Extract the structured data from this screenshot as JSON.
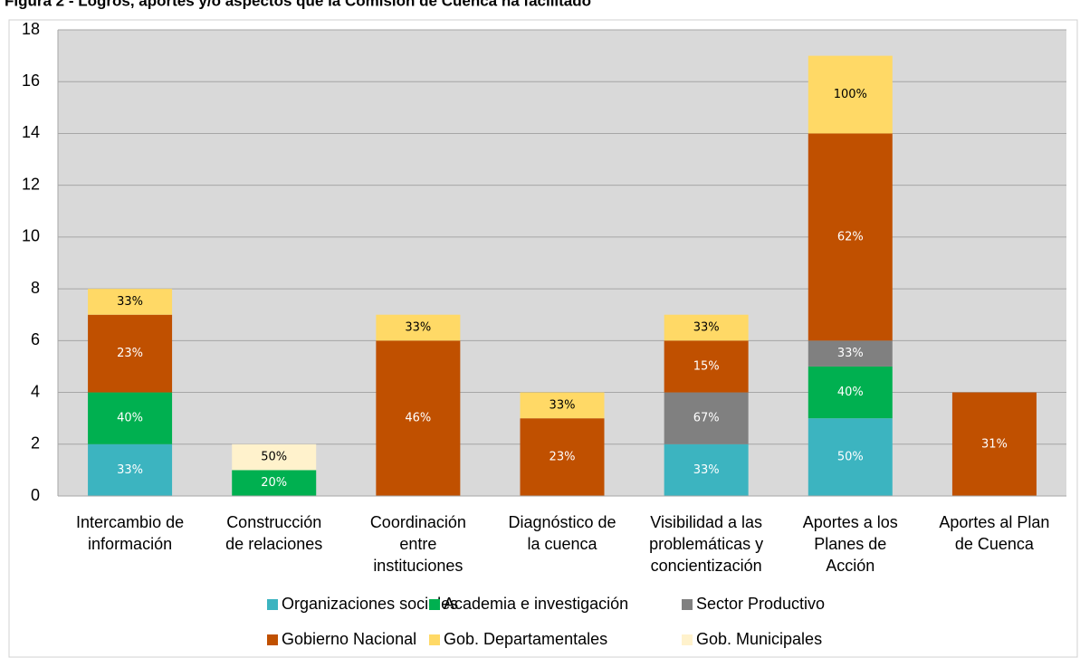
{
  "chart_data": {
    "type": "stacked_bar",
    "title": "Figura 2 - Logros, aportes y/o aspectos que la Comisión de Cuenca ha facilitado",
    "categories": [
      [
        "Intercambio de",
        "información"
      ],
      [
        "Construcción",
        "de relaciones"
      ],
      [
        "Coordinación",
        "entre",
        "instituciones"
      ],
      [
        "Diagnóstico de",
        "la cuenca"
      ],
      [
        "Visibilidad a las",
        "problemáticas y",
        "concientización"
      ],
      [
        "Aportes a los",
        "Planes de",
        "Acción"
      ],
      [
        "Aportes al Plan",
        "de Cuenca"
      ]
    ],
    "series": [
      {
        "name": "Organizaciones sociales",
        "color": "#3cb4c0",
        "values": [
          2,
          null,
          null,
          null,
          2,
          3,
          null
        ],
        "value_labels": [
          "33%",
          null,
          null,
          null,
          "33%",
          "50%",
          null
        ]
      },
      {
        "name": "Academia e investigación",
        "color": "#00b050",
        "values": [
          2,
          1,
          null,
          null,
          null,
          2,
          null
        ],
        "value_labels": [
          "40%",
          "20%",
          null,
          null,
          null,
          "40%",
          null
        ]
      },
      {
        "name": "Sector Productivo",
        "color": "#808080",
        "values": [
          null,
          null,
          null,
          null,
          2,
          1,
          null
        ],
        "value_labels": [
          null,
          null,
          null,
          null,
          "67%",
          "33%",
          null
        ]
      },
      {
        "name": "Gobierno Nacional",
        "color": "#c05000",
        "values": [
          3,
          null,
          6,
          3,
          2,
          8,
          4
        ],
        "value_labels": [
          "23%",
          null,
          "46%",
          "23%",
          "15%",
          "62%",
          "31%"
        ]
      },
      {
        "name": "Gob. Departamentales",
        "color": "#ffd966",
        "values": [
          1,
          null,
          1,
          1,
          1,
          3,
          null
        ],
        "value_labels": [
          "33%",
          null,
          "33%",
          "33%",
          "33%",
          "100%",
          null
        ]
      },
      {
        "name": "Gob. Municipales",
        "color": "#fff2cc",
        "values": [
          null,
          1,
          null,
          null,
          null,
          null,
          null
        ],
        "value_labels": [
          null,
          "50%",
          null,
          null,
          null,
          null,
          null
        ]
      }
    ],
    "ylim": [
      0,
      18
    ],
    "yticks": [
      0,
      2,
      4,
      6,
      8,
      10,
      12,
      14,
      16,
      18
    ],
    "grid": true
  }
}
